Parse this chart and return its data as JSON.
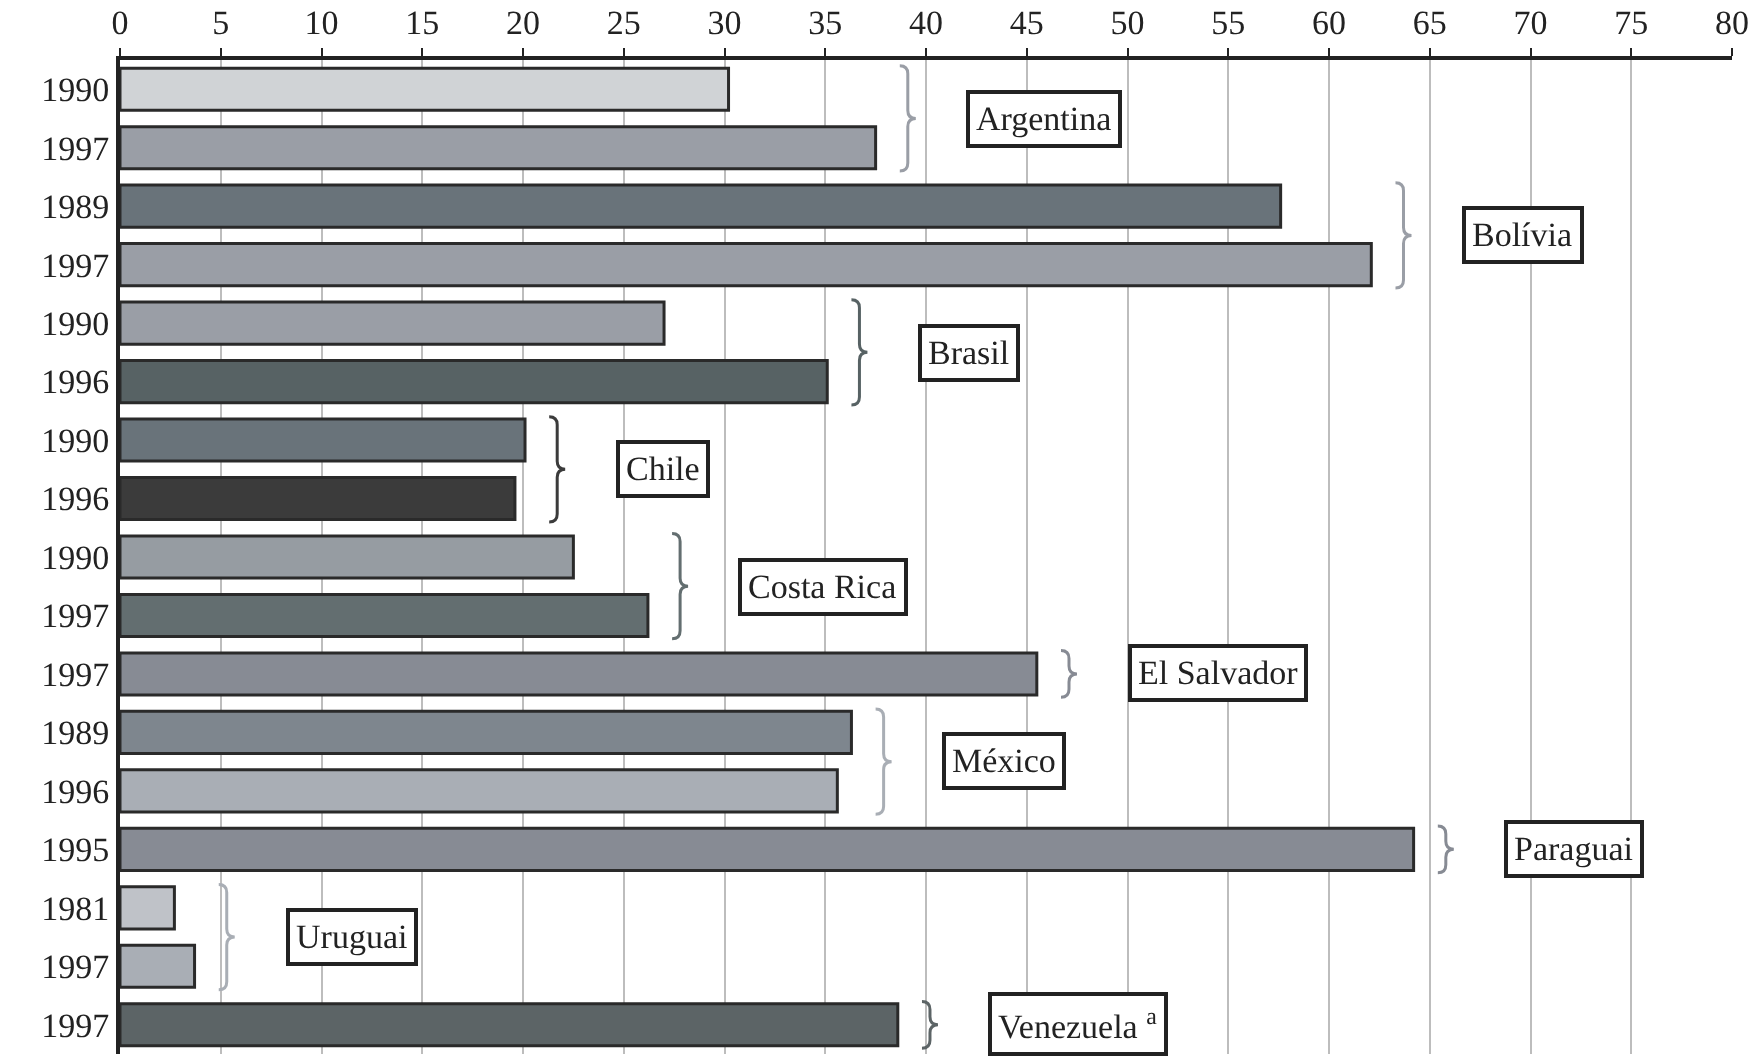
{
  "chart_data": {
    "type": "bar",
    "orientation": "horizontal",
    "categories": [
      "1990",
      "1997",
      "1989",
      "1997",
      "1990",
      "1996",
      "1990",
      "1996",
      "1990",
      "1997",
      "1997",
      "1989",
      "1996",
      "1995",
      "1981",
      "1997",
      "1997"
    ],
    "series": [
      {
        "name": "Argentina",
        "values": [
          30.2,
          37.5,
          null,
          null,
          null,
          null,
          null,
          null,
          null,
          null,
          null,
          null,
          null,
          null,
          null,
          null,
          null
        ],
        "colors": [
          "#d0d3d6",
          "#9a9ea6",
          null,
          null,
          null,
          null,
          null,
          null,
          null,
          null,
          null,
          null,
          null,
          null,
          null,
          null,
          null
        ]
      },
      {
        "name": "Bolívia",
        "values": [
          null,
          null,
          57.6,
          62.1,
          null,
          null,
          null,
          null,
          null,
          null,
          null,
          null,
          null,
          null,
          null,
          null,
          null
        ],
        "colors": [
          null,
          null,
          "#69737a",
          "#9a9ea6",
          null,
          null,
          null,
          null,
          null,
          null,
          null,
          null,
          null,
          null,
          null,
          null,
          null
        ]
      },
      {
        "name": "Brasil",
        "values": [
          null,
          null,
          null,
          null,
          27.0,
          35.1,
          null,
          null,
          null,
          null,
          null,
          null,
          null,
          null,
          null,
          null,
          null
        ],
        "colors": [
          null,
          null,
          null,
          null,
          "#9a9ea6",
          "#576264",
          null,
          null,
          null,
          null,
          null,
          null,
          null,
          null,
          null,
          null,
          null
        ]
      },
      {
        "name": "Chile",
        "values": [
          null,
          null,
          null,
          null,
          null,
          null,
          20.1,
          19.6,
          null,
          null,
          null,
          null,
          null,
          null,
          null,
          null,
          null
        ],
        "colors": [
          null,
          null,
          null,
          null,
          null,
          null,
          "#69737a",
          "#3b3b3b",
          null,
          null,
          null,
          null,
          null,
          null,
          null,
          null,
          null
        ]
      },
      {
        "name": "Costa Rica",
        "values": [
          null,
          null,
          null,
          null,
          null,
          null,
          null,
          null,
          22.5,
          26.2,
          null,
          null,
          null,
          null,
          null,
          null,
          null
        ],
        "colors": [
          null,
          null,
          null,
          null,
          null,
          null,
          null,
          null,
          "#969ca2",
          "#636e70",
          null,
          null,
          null,
          null,
          null,
          null,
          null
        ]
      },
      {
        "name": "El Salvador",
        "values": [
          null,
          null,
          null,
          null,
          null,
          null,
          null,
          null,
          null,
          null,
          45.5,
          null,
          null,
          null,
          null,
          null,
          null
        ],
        "colors": [
          null,
          null,
          null,
          null,
          null,
          null,
          null,
          null,
          null,
          null,
          "#878b94",
          null,
          null,
          null,
          null,
          null,
          null
        ]
      },
      {
        "name": "México",
        "values": [
          null,
          null,
          null,
          null,
          null,
          null,
          null,
          null,
          null,
          null,
          null,
          36.3,
          35.6,
          null,
          null,
          null,
          null
        ],
        "colors": [
          null,
          null,
          null,
          null,
          null,
          null,
          null,
          null,
          null,
          null,
          null,
          "#7e868e",
          "#a9aeb5",
          null,
          null,
          null,
          null
        ]
      },
      {
        "name": "Paraguai",
        "values": [
          null,
          null,
          null,
          null,
          null,
          null,
          null,
          null,
          null,
          null,
          null,
          null,
          null,
          64.2,
          null,
          null,
          null
        ],
        "colors": [
          null,
          null,
          null,
          null,
          null,
          null,
          null,
          null,
          null,
          null,
          null,
          null,
          null,
          "#878b94",
          null,
          null,
          null
        ]
      },
      {
        "name": "Uruguai",
        "values": [
          null,
          null,
          null,
          null,
          null,
          null,
          null,
          null,
          null,
          null,
          null,
          null,
          null,
          null,
          2.7,
          3.7,
          null
        ],
        "colors": [
          null,
          null,
          null,
          null,
          null,
          null,
          null,
          null,
          null,
          null,
          null,
          null,
          null,
          null,
          "#bfc2c8",
          "#a9aeb5",
          null
        ]
      },
      {
        "name": "Venezuela $^{a}$",
        "values": [
          null,
          null,
          null,
          null,
          null,
          null,
          null,
          null,
          null,
          null,
          null,
          null,
          null,
          null,
          null,
          null,
          38.6
        ],
        "colors": [
          null,
          null,
          null,
          null,
          null,
          null,
          null,
          null,
          null,
          null,
          null,
          null,
          null,
          null,
          null,
          null,
          "#5c6466"
        ]
      }
    ],
    "xlim": [
      0,
      80
    ],
    "xticks": [
      0,
      5,
      10,
      15,
      20,
      25,
      30,
      35,
      40,
      45,
      50,
      55,
      60,
      65,
      70,
      75,
      80
    ],
    "grid": "x",
    "legend": "right"
  }
}
